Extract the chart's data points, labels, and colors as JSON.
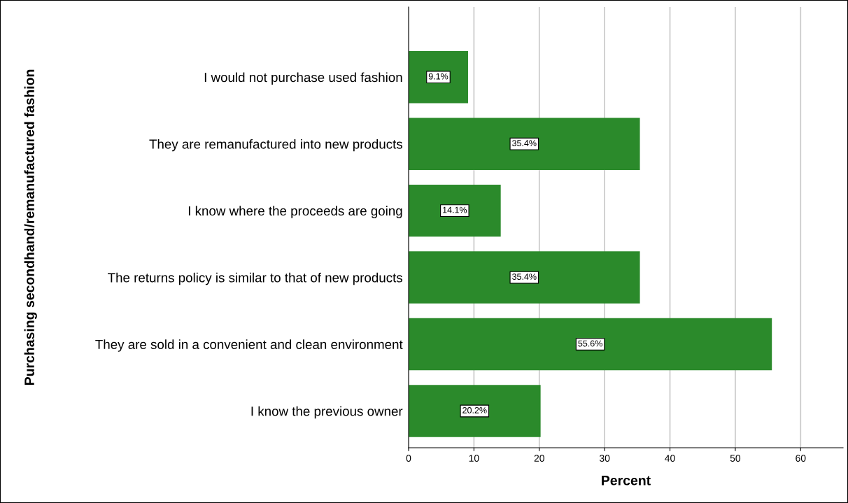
{
  "chart_data": {
    "type": "bar",
    "orientation": "horizontal",
    "ylabel": "Purchasing secondhand/remanufactured fashion",
    "xlabel": "Percent",
    "categories": [
      "I would not purchase used fashion",
      "They are remanufactured into new products",
      "I know where the proceeds are going",
      "The returns policy is similar to that of new products",
      "They are sold in a convenient and clean environment",
      "I know the previous owner"
    ],
    "values": [
      9.1,
      35.4,
      14.1,
      35.4,
      55.6,
      20.2
    ],
    "value_labels": [
      "9.1%",
      "35.4%",
      "14.1%",
      "35.4%",
      "55.6%",
      "20.2%"
    ],
    "color": "#2b8a2b",
    "xlim": [
      0,
      66.5
    ],
    "xticks": [
      0,
      10,
      20,
      30,
      40,
      50,
      60
    ],
    "grid": "x"
  }
}
